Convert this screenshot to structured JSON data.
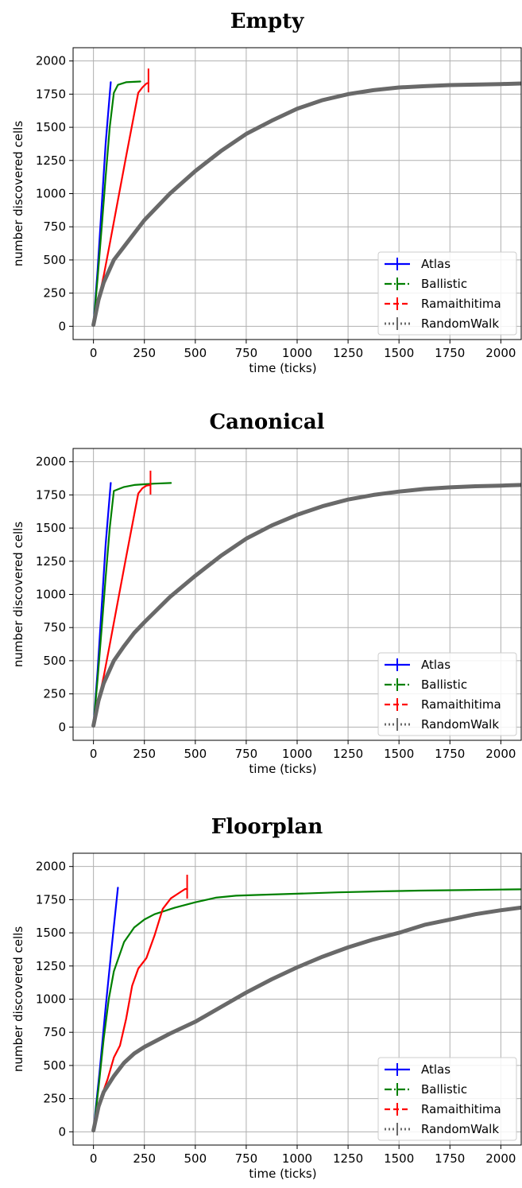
{
  "chart_data": [
    {
      "type": "line",
      "title": "Empty",
      "xlabel": "time (ticks)",
      "ylabel": "number discovered cells",
      "xlim": [
        -100,
        2100
      ],
      "ylim": [
        -100,
        2100
      ],
      "xticks": [
        0,
        250,
        500,
        750,
        1000,
        1250,
        1500,
        1750,
        2000
      ],
      "yticks": [
        0,
        250,
        500,
        750,
        1000,
        1250,
        1500,
        1750,
        2000
      ],
      "grid": true,
      "legend_position": "lower-right",
      "series": [
        {
          "name": "Atlas",
          "color": "#0000ff",
          "x": [
            0,
            20,
            40,
            60,
            85
          ],
          "y": [
            10,
            420,
            900,
            1380,
            1840
          ]
        },
        {
          "name": "Ballistic",
          "color": "#008000",
          "x": [
            0,
            20,
            40,
            60,
            80,
            100,
            120,
            160,
            230
          ],
          "y": [
            10,
            360,
            740,
            1130,
            1500,
            1760,
            1820,
            1840,
            1845
          ]
        },
        {
          "name": "Ramaithitima",
          "color": "#ff0000",
          "x": [
            0,
            25,
            50,
            80,
            120,
            160,
            200,
            220,
            240,
            260,
            270
          ],
          "y": [
            10,
            200,
            380,
            620,
            950,
            1280,
            1600,
            1760,
            1800,
            1830,
            1835
          ]
        },
        {
          "name": "RandomWalk",
          "color": "#696969",
          "x": [
            0,
            25,
            50,
            100,
            150,
            200,
            250,
            375,
            500,
            625,
            750,
            875,
            1000,
            1125,
            1250,
            1375,
            1500,
            1625,
            1750,
            1875,
            2000,
            2100
          ],
          "y": [
            10,
            200,
            330,
            500,
            600,
            700,
            800,
            1000,
            1170,
            1320,
            1450,
            1550,
            1640,
            1705,
            1750,
            1780,
            1800,
            1810,
            1818,
            1822,
            1826,
            1830
          ]
        }
      ]
    },
    {
      "type": "line",
      "title": "Canonical",
      "xlabel": "time (ticks)",
      "ylabel": "number discovered cells",
      "xlim": [
        -100,
        2100
      ],
      "ylim": [
        -100,
        2100
      ],
      "xticks": [
        0,
        250,
        500,
        750,
        1000,
        1250,
        1500,
        1750,
        2000
      ],
      "yticks": [
        0,
        250,
        500,
        750,
        1000,
        1250,
        1500,
        1750,
        2000
      ],
      "grid": true,
      "legend_position": "lower-right",
      "series": [
        {
          "name": "Atlas",
          "color": "#0000ff",
          "x": [
            0,
            20,
            40,
            60,
            85
          ],
          "y": [
            10,
            420,
            900,
            1380,
            1840
          ]
        },
        {
          "name": "Ballistic",
          "color": "#008000",
          "x": [
            0,
            20,
            40,
            60,
            80,
            100,
            150,
            200,
            250,
            300,
            380
          ],
          "y": [
            10,
            360,
            740,
            1130,
            1500,
            1780,
            1810,
            1825,
            1830,
            1835,
            1840
          ]
        },
        {
          "name": "Ramaithitima",
          "color": "#ff0000",
          "x": [
            0,
            25,
            50,
            80,
            120,
            160,
            200,
            220,
            240,
            260,
            280
          ],
          "y": [
            10,
            200,
            380,
            620,
            950,
            1280,
            1600,
            1760,
            1800,
            1820,
            1825
          ]
        },
        {
          "name": "RandomWalk",
          "color": "#696969",
          "x": [
            0,
            25,
            50,
            100,
            150,
            200,
            250,
            375,
            500,
            625,
            750,
            875,
            1000,
            1125,
            1250,
            1375,
            1500,
            1625,
            1750,
            1875,
            2000,
            2100
          ],
          "y": [
            10,
            200,
            330,
            500,
            610,
            710,
            790,
            980,
            1140,
            1290,
            1420,
            1520,
            1600,
            1665,
            1715,
            1750,
            1775,
            1795,
            1807,
            1815,
            1820,
            1825
          ]
        }
      ]
    },
    {
      "type": "line",
      "title": "Floorplan",
      "xlabel": "time (ticks)",
      "ylabel": "number discovered cells",
      "xlim": [
        -100,
        2100
      ],
      "ylim": [
        -100,
        2100
      ],
      "xticks": [
        0,
        250,
        500,
        750,
        1000,
        1250,
        1500,
        1750,
        2000
      ],
      "yticks": [
        0,
        250,
        500,
        750,
        1000,
        1250,
        1500,
        1750,
        2000
      ],
      "grid": true,
      "legend_position": "lower-right",
      "series": [
        {
          "name": "Atlas",
          "color": "#0000ff",
          "x": [
            0,
            30,
            60,
            90,
            120
          ],
          "y": [
            10,
            450,
            940,
            1400,
            1840
          ]
        },
        {
          "name": "Ballistic",
          "color": "#008000",
          "x": [
            0,
            25,
            50,
            75,
            100,
            150,
            200,
            250,
            300,
            400,
            500,
            600,
            700,
            800,
            1000,
            1200,
            1400,
            1600,
            1800,
            2000,
            2100
          ],
          "y": [
            10,
            330,
            700,
            1000,
            1210,
            1430,
            1540,
            1600,
            1640,
            1690,
            1730,
            1765,
            1780,
            1785,
            1795,
            1805,
            1812,
            1818,
            1822,
            1826,
            1828
          ]
        },
        {
          "name": "Ramaithitima",
          "color": "#ff0000",
          "x": [
            0,
            40,
            70,
            100,
            130,
            160,
            190,
            220,
            260,
            300,
            340,
            380,
            420,
            450,
            460
          ],
          "y": [
            10,
            270,
            400,
            560,
            650,
            850,
            1100,
            1230,
            1310,
            1480,
            1680,
            1760,
            1800,
            1830,
            1830
          ]
        },
        {
          "name": "RandomWalk",
          "color": "#696969",
          "x": [
            0,
            25,
            50,
            100,
            150,
            200,
            250,
            375,
            500,
            625,
            750,
            875,
            1000,
            1125,
            1250,
            1375,
            1500,
            1625,
            1750,
            1875,
            2000,
            2100
          ],
          "y": [
            10,
            190,
            300,
            420,
            520,
            590,
            640,
            740,
            830,
            940,
            1050,
            1150,
            1240,
            1320,
            1390,
            1450,
            1500,
            1560,
            1600,
            1640,
            1670,
            1690
          ]
        }
      ]
    }
  ]
}
